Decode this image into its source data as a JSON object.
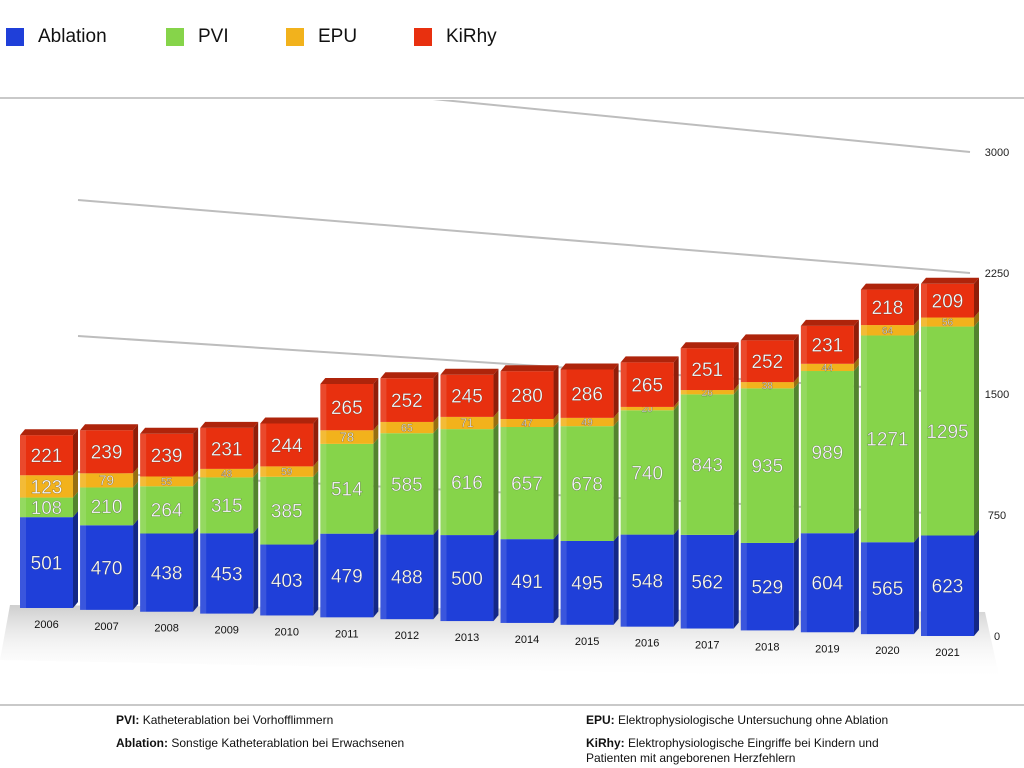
{
  "legend": [
    {
      "label": "Ablation",
      "color": "#1f3fd9"
    },
    {
      "label": "PVI",
      "color": "#86d44a"
    },
    {
      "label": "EPU",
      "color": "#f2b21c"
    },
    {
      "label": "KiRhy",
      "color": "#e8300f"
    }
  ],
  "footnotes": {
    "pvi_term": "PVI:",
    "pvi_text": "Katheterablation bei Vorhofflimmern",
    "ablation_term": "Ablation:",
    "ablation_text": "Sonstige Katheterablation bei Erwachsenen",
    "epu_term": "EPU:",
    "epu_text": "Elektrophysiologische Untersuchung ohne Ablation",
    "kirhy_term": "KiRhy:",
    "kirhy_text_1": "Elektrophysiologische Eingriffe bei Kindern und",
    "kirhy_text_2": "Patienten mit angeborenen Herzfehlern"
  },
  "chart_data": {
    "type": "bar",
    "stacked": true,
    "categories": [
      "2006",
      "2007",
      "2008",
      "2009",
      "2010",
      "2011",
      "2012",
      "2013",
      "2014",
      "2015",
      "2016",
      "2017",
      "2018",
      "2019",
      "2020",
      "2021"
    ],
    "series": [
      {
        "name": "Ablation",
        "color": "#1f3fd9",
        "values": [
          501,
          470,
          438,
          453,
          403,
          479,
          488,
          500,
          491,
          495,
          548,
          562,
          529,
          604,
          565,
          623
        ]
      },
      {
        "name": "PVI",
        "color": "#86d44a",
        "values": [
          108,
          210,
          264,
          315,
          385,
          514,
          585,
          616,
          657,
          678,
          740,
          843,
          935,
          989,
          1271,
          1295
        ]
      },
      {
        "name": "EPU",
        "color": "#f2b21c",
        "values": [
          123,
          79,
          55,
          48,
          59,
          78,
          65,
          71,
          47,
          49,
          20,
          26,
          38,
          44,
          64,
          56
        ]
      },
      {
        "name": "KiRhy",
        "color": "#e8300f",
        "values": [
          221,
          239,
          239,
          231,
          244,
          265,
          252,
          245,
          280,
          286,
          265,
          251,
          252,
          231,
          218,
          209
        ]
      }
    ],
    "y_ticks": [
      "0",
      "750",
      "1500",
      "2250",
      "3000"
    ],
    "ylim": [
      0,
      3000
    ],
    "grid": true,
    "legend_position": "top"
  }
}
